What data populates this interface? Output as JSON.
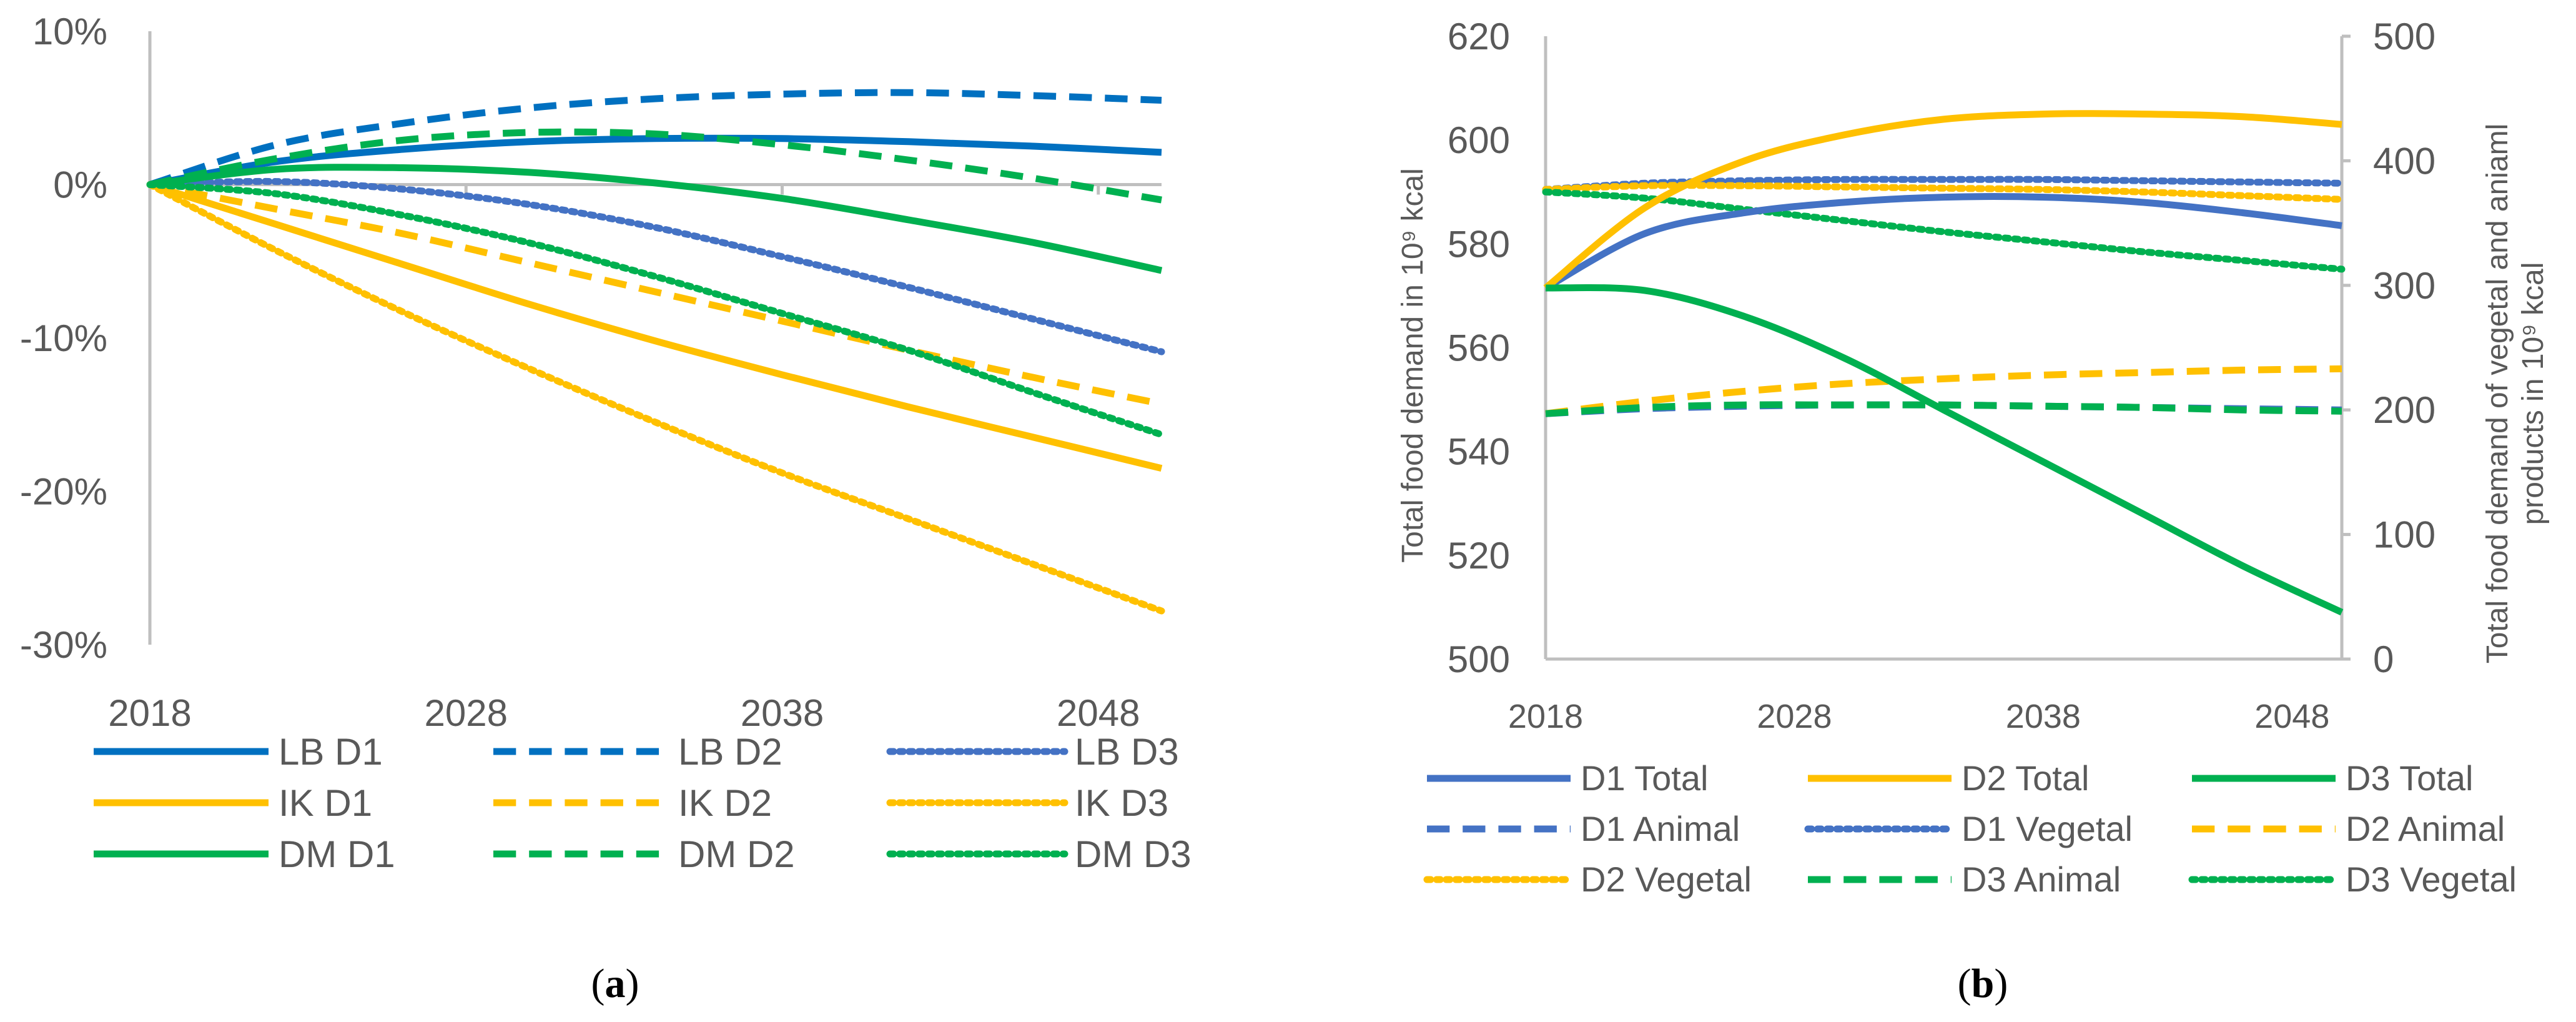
{
  "chart_data": [
    {
      "type": "line",
      "panel_label": "(a)",
      "panel_letter": "a",
      "title": "",
      "xlabel": "",
      "ylabel": "",
      "x": [
        2018,
        2022,
        2026,
        2030,
        2034,
        2038,
        2042,
        2046,
        2050
      ],
      "xticks": [
        2018,
        2028,
        2038,
        2048
      ],
      "xlim": [
        2018,
        2050
      ],
      "ylim": [
        -30,
        10
      ],
      "yticks": [
        10,
        0,
        -10,
        -20,
        -30
      ],
      "ytick_labels": [
        "10%",
        "0%",
        "-10%",
        "-20%",
        "-30%"
      ],
      "grid": false,
      "legend_position": "bottom",
      "series": [
        {
          "name": "LB D1",
          "color": "#0070C0",
          "dash": "solid",
          "values": [
            0,
            1.5,
            2.3,
            2.8,
            3.0,
            3.0,
            2.8,
            2.5,
            2.1
          ]
        },
        {
          "name": "LB D2",
          "color": "#0070C0",
          "dash": "dashed",
          "values": [
            0,
            2.6,
            4.0,
            5.0,
            5.6,
            5.9,
            6.0,
            5.8,
            5.5
          ]
        },
        {
          "name": "LB D3",
          "color": "#4472C4",
          "dash": "dotted",
          "values": [
            0,
            0.2,
            -0.3,
            -1.3,
            -2.8,
            -4.7,
            -6.7,
            -8.8,
            -10.9
          ]
        },
        {
          "name": "IK D1",
          "color": "#FFC000",
          "dash": "solid",
          "values": [
            0,
            -2.6,
            -5.2,
            -7.8,
            -10.2,
            -12.4,
            -14.5,
            -16.5,
            -18.5
          ]
        },
        {
          "name": "IK D2",
          "color": "#FFC000",
          "dash": "dashed",
          "values": [
            0,
            -1.6,
            -3.2,
            -5.1,
            -7.0,
            -8.9,
            -10.8,
            -12.6,
            -14.3
          ]
        },
        {
          "name": "IK D3",
          "color": "#FFC000",
          "dash": "dotted",
          "values": [
            0,
            -4.3,
            -8.3,
            -12.0,
            -15.5,
            -18.8,
            -21.8,
            -24.8,
            -27.8
          ]
        },
        {
          "name": "DM D1",
          "color": "#00B050",
          "dash": "solid",
          "values": [
            0,
            1.0,
            1.1,
            0.8,
            0.1,
            -0.9,
            -2.3,
            -3.8,
            -5.6
          ]
        },
        {
          "name": "DM D2",
          "color": "#00B050",
          "dash": "dashed",
          "values": [
            0,
            1.7,
            2.9,
            3.4,
            3.3,
            2.6,
            1.6,
            0.4,
            -1.0
          ]
        },
        {
          "name": "DM D3",
          "color": "#00B050",
          "dash": "dotted",
          "values": [
            0,
            -0.6,
            -2.0,
            -3.8,
            -6.0,
            -8.4,
            -10.8,
            -13.6,
            -16.3
          ]
        }
      ]
    },
    {
      "type": "line",
      "panel_label": "(b)",
      "panel_letter": "b",
      "title": "",
      "xlabel": "",
      "ylabel_left": "Total food demand in 10⁹ kcal",
      "ylabel_right_line1": "Total food demand of vegetal and aniaml",
      "ylabel_right_line2": "products in 10⁹ kcal",
      "x": [
        2018,
        2022,
        2026,
        2030,
        2034,
        2038,
        2042,
        2046,
        2050
      ],
      "xticks": [
        2018,
        2028,
        2038,
        2048
      ],
      "xlim": [
        2018,
        2050
      ],
      "ylim_left": [
        500,
        620
      ],
      "yticks_left": [
        620,
        600,
        580,
        560,
        540,
        520,
        500
      ],
      "ylim_right": [
        0,
        500
      ],
      "yticks_right": [
        500,
        400,
        300,
        200,
        100,
        0
      ],
      "grid": false,
      "legend_position": "bottom",
      "series": [
        {
          "name": "D1 Total",
          "axis": "left",
          "color": "#4472C4",
          "dash": "solid",
          "values": [
            571.5,
            582,
            586,
            588,
            589,
            589,
            588,
            586,
            583.5
          ]
        },
        {
          "name": "D2 Total",
          "axis": "left",
          "color": "#FFC000",
          "dash": "solid",
          "values": [
            571.5,
            587,
            596,
            601,
            604,
            605,
            605,
            604.5,
            603
          ]
        },
        {
          "name": "D3 Total",
          "axis": "left",
          "color": "#00B050",
          "dash": "solid",
          "values": [
            571.5,
            571,
            566,
            558,
            548,
            538,
            528,
            518,
            509
          ]
        },
        {
          "name": "D1 Animal",
          "axis": "right",
          "color": "#4472C4",
          "dash": "dashed",
          "values": [
            197,
            201,
            203,
            204,
            204,
            203,
            202,
            201,
            200
          ]
        },
        {
          "name": "D1 Vegetal",
          "axis": "right",
          "color": "#4472C4",
          "dash": "dotted",
          "values": [
            377,
            382,
            384,
            385,
            385,
            385,
            384,
            383,
            382
          ]
        },
        {
          "name": "D2 Animal",
          "axis": "right",
          "color": "#FFC000",
          "dash": "dashed",
          "values": [
            197,
            207,
            215,
            221,
            225,
            228,
            230,
            232,
            233
          ]
        },
        {
          "name": "D2 Vegetal",
          "axis": "right",
          "color": "#FFC000",
          "dash": "dotted",
          "values": [
            377,
            380,
            380,
            379,
            378,
            377,
            375,
            372,
            369
          ]
        },
        {
          "name": "D3 Animal",
          "axis": "right",
          "color": "#00B050",
          "dash": "dashed",
          "values": [
            197,
            202,
            204,
            204,
            204,
            203,
            202,
            200,
            199
          ]
        },
        {
          "name": "D3 Vegetal",
          "axis": "right",
          "color": "#00B050",
          "dash": "dotted",
          "values": [
            375,
            370,
            361,
            352,
            343,
            335,
            327,
            320,
            313
          ]
        }
      ]
    }
  ]
}
